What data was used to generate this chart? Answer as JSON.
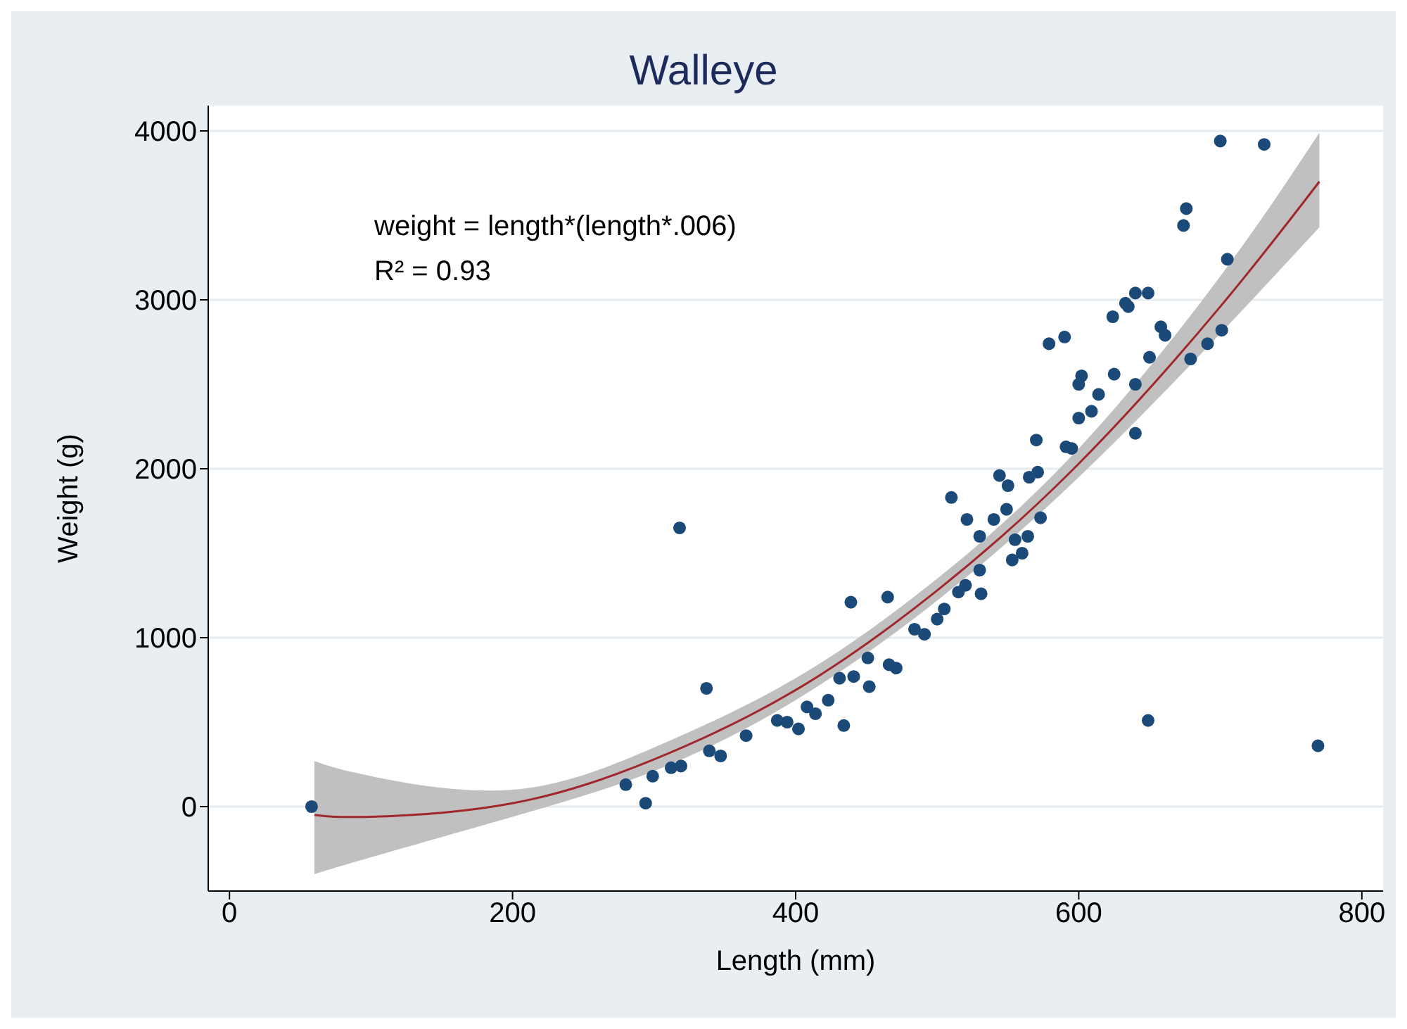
{
  "chart_data": {
    "type": "scatter",
    "title": "Walleye",
    "xlabel": "Length (mm)",
    "ylabel": "Weight (g)",
    "annotations": [
      "weight = length*(length*.006)",
      "R² = 0.93"
    ],
    "xlim": [
      -15,
      815
    ],
    "xticks": [
      0,
      200,
      400,
      600,
      800
    ],
    "ylim": [
      -500,
      4150
    ],
    "yticks": [
      0,
      1000,
      2000,
      3000,
      4000
    ],
    "grid": "y",
    "series": [
      {
        "type": "line",
        "marker": "none",
        "color": "#a0282c",
        "x": [
          60,
          100,
          200,
          300,
          400,
          500,
          600,
          700,
          770
        ],
        "values": [
          -50,
          -60,
          20,
          280,
          690,
          1280,
          2030,
          2960,
          3700
        ],
        "lower": [
          -400,
          -300,
          -60,
          210,
          630,
          1220,
          1950,
          2800,
          3430
        ],
        "upper": [
          270,
          180,
          100,
          350,
          760,
          1350,
          2120,
          3140,
          3990
        ]
      },
      {
        "marker": "circle",
        "color": "#1b4a78",
        "x": [
          58,
          294,
          318,
          337,
          347,
          339,
          319,
          312,
          299,
          280,
          365,
          387,
          394,
          402,
          408,
          414,
          423,
          431,
          434,
          441,
          439,
          452,
          451,
          465,
          466,
          471,
          484,
          491,
          500,
          505,
          515,
          520,
          531,
          530,
          510,
          521,
          530,
          540,
          549,
          544,
          550,
          555,
          553,
          560,
          564,
          565,
          571,
          573,
          570,
          700,
          731,
          676,
          674,
          705,
          640,
          649,
          633,
          635,
          624,
          579,
          590,
          658,
          661,
          650,
          602,
          600,
          625,
          614,
          609,
          600,
          640,
          591,
          595,
          701,
          691,
          679,
          640,
          649,
          769
        ],
        "values": [
          0,
          20,
          1650,
          700,
          300,
          330,
          240,
          230,
          180,
          130,
          420,
          510,
          500,
          460,
          590,
          550,
          630,
          760,
          480,
          770,
          1210,
          710,
          880,
          1240,
          840,
          820,
          1050,
          1020,
          1110,
          1170,
          1270,
          1310,
          1260,
          1400,
          1830,
          1700,
          1600,
          1700,
          1760,
          1960,
          1900,
          1580,
          1460,
          1500,
          1600,
          1950,
          1980,
          1710,
          2170,
          3940,
          3920,
          3540,
          3440,
          3240,
          3040,
          3040,
          2980,
          2960,
          2900,
          2740,
          2780,
          2840,
          2790,
          2660,
          2550,
          2500,
          2560,
          2440,
          2340,
          2300,
          2210,
          2130,
          2120,
          2820,
          2740,
          2650,
          2500,
          510,
          360
        ]
      }
    ]
  }
}
